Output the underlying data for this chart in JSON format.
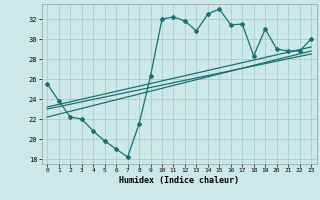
{
  "title": "",
  "xlabel": "Humidex (Indice chaleur)",
  "background_color": "#cce8e8",
  "grid_color": "#aacccc",
  "line_color": "#1a7070",
  "xlim": [
    -0.5,
    23.5
  ],
  "ylim": [
    17.5,
    33.5
  ],
  "yticks": [
    18,
    20,
    22,
    24,
    26,
    28,
    30,
    32
  ],
  "xticks": [
    0,
    1,
    2,
    3,
    4,
    5,
    6,
    7,
    8,
    9,
    10,
    11,
    12,
    13,
    14,
    15,
    16,
    17,
    18,
    19,
    20,
    21,
    22,
    23
  ],
  "line1_x": [
    0,
    1,
    2,
    3,
    4,
    5,
    6,
    7,
    8,
    9,
    10,
    11,
    12,
    13,
    14,
    15,
    16,
    17,
    18,
    19,
    20,
    21,
    22,
    23
  ],
  "line1_y": [
    25.5,
    23.8,
    22.2,
    22.0,
    20.8,
    19.8,
    19.0,
    18.2,
    21.5,
    26.3,
    32.0,
    32.2,
    31.8,
    30.8,
    32.5,
    33.0,
    31.4,
    31.5,
    28.3,
    31.0,
    29.0,
    28.8,
    28.8,
    30.0
  ],
  "line2_x": [
    0,
    23
  ],
  "line2_y": [
    23.0,
    28.5
  ],
  "line3_x": [
    0,
    23
  ],
  "line3_y": [
    22.2,
    28.8
  ],
  "line4_x": [
    0,
    23
  ],
  "line4_y": [
    23.2,
    29.2
  ]
}
